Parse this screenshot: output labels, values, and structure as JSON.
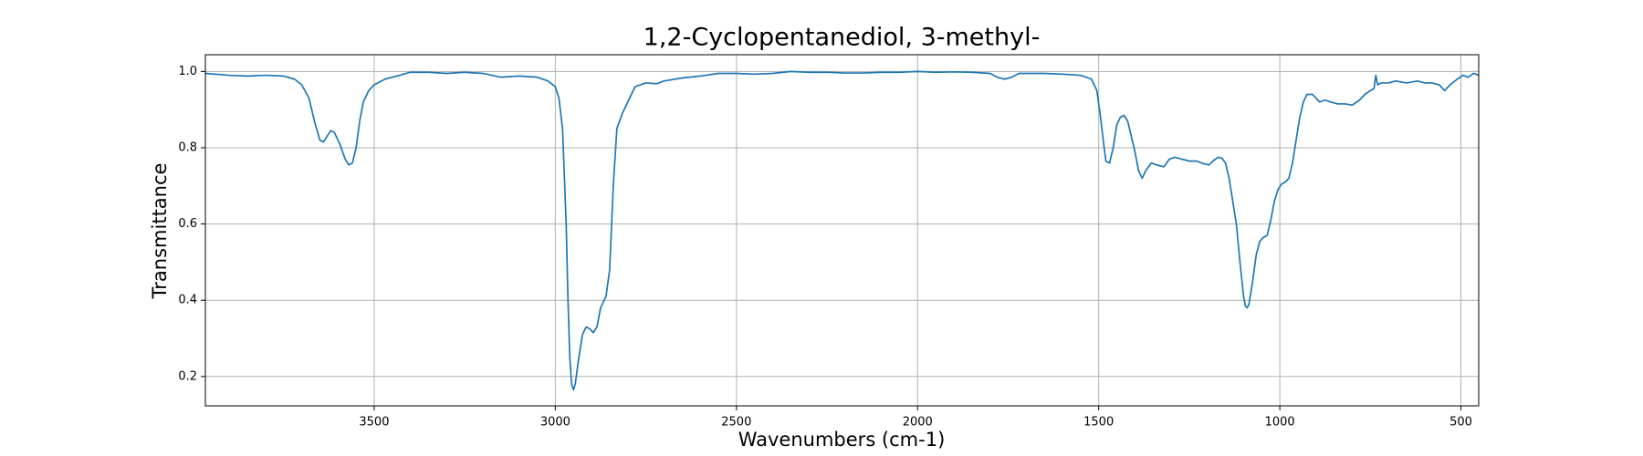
{
  "chart_data": {
    "type": "line",
    "title": "1,2-Cyclopentanediol, 3-methyl-",
    "xlabel": "Wavenumbers (cm-1)",
    "ylabel": "Transmittance",
    "color": "#1f77b4",
    "grid": true,
    "xlim": [
      3966,
      451
    ],
    "ylim": [
      0.123,
      1.044
    ],
    "xticks": [
      3500,
      3000,
      2500,
      2000,
      1500,
      1000,
      500
    ],
    "yticks": [
      0.2,
      0.4,
      0.6,
      0.8,
      {
        "value": 1,
        "label": "1.0"
      }
    ],
    "x": [
      3966,
      3900,
      3850,
      3800,
      3750,
      3720,
      3700,
      3680,
      3665,
      3650,
      3640,
      3630,
      3620,
      3610,
      3595,
      3580,
      3570,
      3560,
      3550,
      3540,
      3530,
      3515,
      3500,
      3470,
      3430,
      3400,
      3350,
      3300,
      3250,
      3200,
      3150,
      3100,
      3050,
      3020,
      3000,
      2990,
      2980,
      2970,
      2965,
      2960,
      2955,
      2950,
      2945,
      2935,
      2925,
      2915,
      2905,
      2895,
      2885,
      2875,
      2860,
      2850,
      2840,
      2830,
      2815,
      2800,
      2780,
      2750,
      2720,
      2700,
      2650,
      2600,
      2550,
      2500,
      2450,
      2400,
      2350,
      2300,
      2250,
      2200,
      2150,
      2100,
      2050,
      2000,
      1950,
      1900,
      1850,
      1800,
      1780,
      1760,
      1740,
      1720,
      1700,
      1650,
      1600,
      1550,
      1520,
      1505,
      1495,
      1485,
      1480,
      1470,
      1460,
      1450,
      1440,
      1430,
      1420,
      1410,
      1400,
      1390,
      1380,
      1370,
      1355,
      1340,
      1320,
      1305,
      1290,
      1270,
      1250,
      1230,
      1210,
      1195,
      1185,
      1170,
      1160,
      1150,
      1140,
      1130,
      1120,
      1110,
      1100,
      1095,
      1090,
      1085,
      1075,
      1065,
      1055,
      1045,
      1035,
      1025,
      1015,
      1005,
      995,
      985,
      975,
      965,
      955,
      945,
      935,
      925,
      910,
      900,
      890,
      875,
      860,
      840,
      820,
      800,
      780,
      765,
      750,
      740,
      735,
      730,
      720,
      700,
      680,
      650,
      620,
      600,
      580,
      560,
      545,
      530,
      510,
      495,
      480,
      465,
      451
    ],
    "values": [
      0.995,
      0.99,
      0.988,
      0.99,
      0.988,
      0.98,
      0.965,
      0.93,
      0.87,
      0.82,
      0.815,
      0.83,
      0.845,
      0.84,
      0.81,
      0.77,
      0.755,
      0.76,
      0.8,
      0.87,
      0.92,
      0.95,
      0.965,
      0.98,
      0.99,
      0.998,
      0.998,
      0.995,
      0.998,
      0.995,
      0.985,
      0.988,
      0.985,
      0.975,
      0.96,
      0.93,
      0.85,
      0.6,
      0.4,
      0.25,
      0.18,
      0.165,
      0.18,
      0.25,
      0.31,
      0.33,
      0.325,
      0.315,
      0.33,
      0.38,
      0.41,
      0.48,
      0.7,
      0.85,
      0.89,
      0.92,
      0.96,
      0.97,
      0.968,
      0.975,
      0.983,
      0.988,
      0.995,
      0.995,
      0.993,
      0.995,
      1.0,
      0.998,
      0.998,
      0.996,
      0.996,
      0.998,
      0.998,
      1.0,
      0.998,
      0.999,
      0.998,
      0.995,
      0.985,
      0.98,
      0.985,
      0.995,
      0.995,
      0.995,
      0.993,
      0.99,
      0.98,
      0.95,
      0.88,
      0.8,
      0.765,
      0.76,
      0.8,
      0.86,
      0.88,
      0.885,
      0.87,
      0.83,
      0.79,
      0.74,
      0.72,
      0.74,
      0.76,
      0.755,
      0.75,
      0.77,
      0.775,
      0.77,
      0.765,
      0.765,
      0.758,
      0.755,
      0.765,
      0.775,
      0.773,
      0.76,
      0.72,
      0.66,
      0.6,
      0.5,
      0.41,
      0.385,
      0.38,
      0.39,
      0.45,
      0.52,
      0.555,
      0.565,
      0.57,
      0.61,
      0.66,
      0.69,
      0.705,
      0.71,
      0.72,
      0.76,
      0.82,
      0.88,
      0.92,
      0.94,
      0.94,
      0.93,
      0.92,
      0.925,
      0.92,
      0.915,
      0.915,
      0.912,
      0.925,
      0.94,
      0.95,
      0.955,
      0.99,
      0.965,
      0.97,
      0.97,
      0.975,
      0.97,
      0.975,
      0.97,
      0.97,
      0.965,
      0.95,
      0.965,
      0.98,
      0.99,
      0.985,
      0.995,
      0.99
    ]
  }
}
